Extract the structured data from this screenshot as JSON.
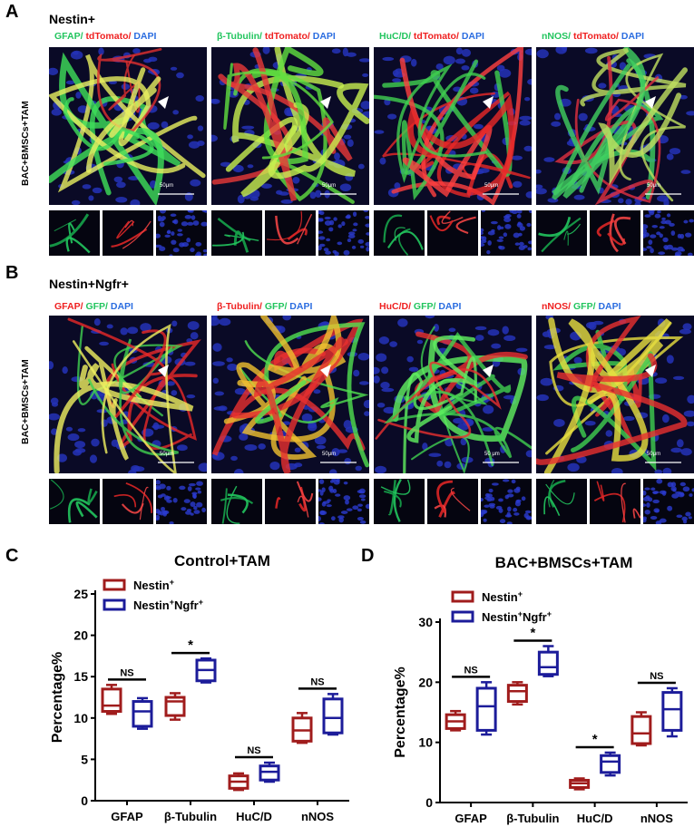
{
  "panels": {
    "A": {
      "letter": "A",
      "title": "Nestin+",
      "side_label": "BAC+BMSCs+TAM",
      "images": [
        {
          "labels": [
            {
              "t": "GFAP/ ",
              "c": "#22c55e"
            },
            {
              "t": "tdTomato/ ",
              "c": "#ef2020"
            },
            {
              "t": "DAPI",
              "c": "#2b6de0"
            }
          ],
          "scale": "50μm"
        },
        {
          "labels": [
            {
              "t": "β-Tubulin/ ",
              "c": "#22c55e"
            },
            {
              "t": "tdTomato/ ",
              "c": "#ef2020"
            },
            {
              "t": "DAPI",
              "c": "#2b6de0"
            }
          ],
          "scale": "50μm"
        },
        {
          "labels": [
            {
              "t": "HuC/D/ ",
              "c": "#22c55e"
            },
            {
              "t": "tdTomato/ ",
              "c": "#ef2020"
            },
            {
              "t": "DAPI",
              "c": "#2b6de0"
            }
          ],
          "scale": "50μm"
        },
        {
          "labels": [
            {
              "t": "nNOS/ ",
              "c": "#22c55e"
            },
            {
              "t": "tdTomato/ ",
              "c": "#ef2020"
            },
            {
              "t": "DAPI",
              "c": "#2b6de0"
            }
          ],
          "scale": "50μm"
        }
      ]
    },
    "B": {
      "letter": "B",
      "title": "Nestin+Ngfr+",
      "side_label": "BAC+BMSCs+TAM",
      "images": [
        {
          "labels": [
            {
              "t": "GFAP/ ",
              "c": "#ef2020"
            },
            {
              "t": "GFP/ ",
              "c": "#22c55e"
            },
            {
              "t": " DAPI",
              "c": "#2b6de0"
            }
          ],
          "scale": "50μm"
        },
        {
          "labels": [
            {
              "t": "β-Tubulin/ ",
              "c": "#ef2020"
            },
            {
              "t": "GFP/ ",
              "c": "#22c55e"
            },
            {
              "t": "DAPI",
              "c": "#2b6de0"
            }
          ],
          "scale": "50μm"
        },
        {
          "labels": [
            {
              "t": "HuC/D/ ",
              "c": "#ef2020"
            },
            {
              "t": "GFP/ ",
              "c": "#22c55e"
            },
            {
              "t": "DAPI",
              "c": "#2b6de0"
            }
          ],
          "scale": "50 μm"
        },
        {
          "labels": [
            {
              "t": "nNOS/ ",
              "c": "#ef2020"
            },
            {
              "t": "GFP/ ",
              "c": "#22c55e"
            },
            {
              "t": "DAPI",
              "c": "#2b6de0"
            }
          ],
          "scale": "50μm"
        }
      ]
    },
    "C": {
      "letter": "C"
    },
    "D": {
      "letter": "D"
    }
  },
  "colors": {
    "nestin": "#a01c1c",
    "ngfr": "#1c1c9a"
  },
  "chart_data": [
    {
      "type": "box",
      "title": "Control+TAM",
      "ylabel": "Percentage%",
      "xlabel": "",
      "ylim": [
        0,
        25
      ],
      "yticks": [
        0,
        5,
        10,
        15,
        20,
        25
      ],
      "categories": [
        "GFAP",
        "β-Tubulin",
        "HuC/D",
        "nNOS"
      ],
      "legend_placement": "top-left",
      "series": [
        {
          "name": "Nestin",
          "sup": "+",
          "boxes": [
            {
              "min": 10.5,
              "q1": 10.8,
              "median": 11.5,
              "q3": 13.5,
              "max": 14.0
            },
            {
              "min": 9.8,
              "q1": 10.3,
              "median": 12.0,
              "q3": 12.5,
              "max": 13.0
            },
            {
              "min": 1.3,
              "q1": 1.5,
              "median": 2.3,
              "q3": 3.0,
              "max": 3.3
            },
            {
              "min": 7.0,
              "q1": 7.2,
              "median": 8.5,
              "q3": 10.0,
              "max": 10.6
            }
          ]
        },
        {
          "name": "Nestin",
          "sup": "+",
          "name2": "Ngfr",
          "sup2": "+",
          "boxes": [
            {
              "min": 8.7,
              "q1": 9.0,
              "median": 10.8,
              "q3": 12.0,
              "max": 12.4
            },
            {
              "min": 14.3,
              "q1": 14.5,
              "median": 15.8,
              "q3": 17.0,
              "max": 17.2
            },
            {
              "min": 2.3,
              "q1": 2.5,
              "median": 3.5,
              "q3": 4.2,
              "max": 4.6
            },
            {
              "min": 8.0,
              "q1": 8.2,
              "median": 10.0,
              "q3": 12.3,
              "max": 12.9
            }
          ]
        }
      ],
      "annotations": [
        "NS",
        "*",
        "NS",
        "NS"
      ]
    },
    {
      "type": "box",
      "title": "BAC+BMSCs+TAM",
      "ylabel": "Percentage%",
      "xlabel": "",
      "ylim": [
        0,
        30
      ],
      "yticks": [
        0,
        10,
        20,
        30
      ],
      "categories": [
        "GFAP",
        "β-Tubulin",
        "HuC/D",
        "nNOS"
      ],
      "legend_placement": "top-left",
      "series": [
        {
          "name": "Nestin",
          "sup": "+",
          "boxes": [
            {
              "min": 12.0,
              "q1": 12.3,
              "median": 13.5,
              "q3": 14.6,
              "max": 15.2
            },
            {
              "min": 16.3,
              "q1": 16.8,
              "median": 18.5,
              "q3": 19.5,
              "max": 20.0
            },
            {
              "min": 2.2,
              "q1": 2.5,
              "median": 3.2,
              "q3": 3.7,
              "max": 4.0
            },
            {
              "min": 9.5,
              "q1": 9.8,
              "median": 11.5,
              "q3": 14.3,
              "max": 15.0
            }
          ]
        },
        {
          "name": "Nestin",
          "sup": "+",
          "name2": "Ngfr",
          "sup2": "+",
          "boxes": [
            {
              "min": 11.3,
              "q1": 12.0,
              "median": 16.0,
              "q3": 19.0,
              "max": 20.0
            },
            {
              "min": 21.0,
              "q1": 21.3,
              "median": 22.5,
              "q3": 25.0,
              "max": 26.0
            },
            {
              "min": 4.5,
              "q1": 5.0,
              "median": 6.8,
              "q3": 7.8,
              "max": 8.3
            },
            {
              "min": 11.0,
              "q1": 12.0,
              "median": 15.5,
              "q3": 18.3,
              "max": 19.0
            }
          ]
        }
      ],
      "annotations": [
        "NS",
        "*",
        "*",
        "NS"
      ]
    }
  ]
}
